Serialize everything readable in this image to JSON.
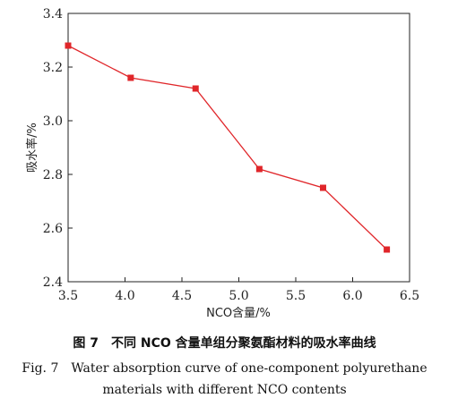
{
  "chart_data": {
    "type": "line",
    "x": [
      3.5,
      4.05,
      4.62,
      5.18,
      5.74,
      6.3
    ],
    "series": [
      {
        "values": [
          3.28,
          3.16,
          3.12,
          2.82,
          2.75,
          2.52
        ],
        "color": "#e0262a",
        "marker": "square"
      }
    ],
    "xlabel": "NCO含量/%",
    "ylabel": "吸水率/%",
    "xlim": [
      3.5,
      6.5
    ],
    "ylim": [
      2.4,
      3.4
    ],
    "xticks": [
      "3.5",
      "4.0",
      "4.5",
      "5.0",
      "5.5",
      "6.0",
      "6.5"
    ],
    "yticks": [
      "2.4",
      "2.6",
      "2.8",
      "3.0",
      "3.2",
      "3.4"
    ],
    "grid": false
  },
  "caption": {
    "cn": "图 7　不同 NCO 含量单组分聚氨酯材料的吸水率曲线",
    "en_line1": "Fig. 7　Water absorption curve of one-component polyurethane",
    "en_line2": "materials with different NCO contents"
  }
}
